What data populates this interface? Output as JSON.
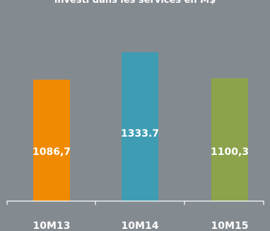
{
  "chart_data": {
    "type": "bar",
    "title": "investi dans les services en M$",
    "categories": [
      "10M13",
      "10M14",
      "10M15"
    ],
    "values": [
      1086.7,
      1333.7,
      1100.3
    ],
    "data_labels": [
      "1086,7",
      "1333.7",
      "1100,3"
    ],
    "xlabel": "",
    "ylabel": "",
    "ylim": [
      0,
      1550
    ],
    "grid": false,
    "legend": "none"
  },
  "colors": {
    "background": "#838a90",
    "bars": [
      "#f08a00",
      "#3e9db3",
      "#8ca34c"
    ],
    "axis": "#ffffff"
  }
}
